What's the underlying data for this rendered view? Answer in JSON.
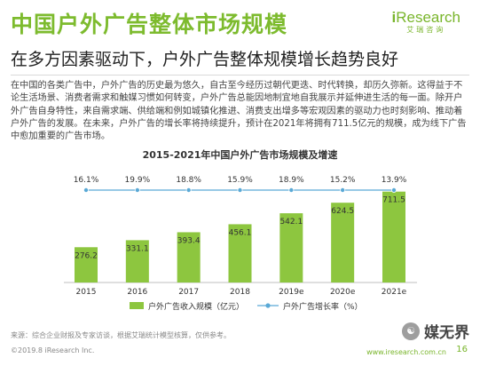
{
  "header": {
    "title": "中国户外广告整体市场规模",
    "subtitle": "在多方因素驱动下，户外广告整体规模增长趋势良好",
    "paragraph": "在中国的各类广告中，户外广告的历史最为悠久，自古至今经历过朝代更迭、时代转换，却历久弥新。这得益于不论生活场景、消费者需求和触媒习惯如何转变，户外广告总能因地制宜地自我展示并延伸进生活的每一面。除开户外广告自身特性，来自需求端、供给端和例如城镇化推进、消费支出增多等宏观因素的驱动力也时刻影响、推动着户外广告的发展。在未来，户外广告的增长率将持续提升，预计在2021年将拥有711.5亿元的规模，成为线下广告中愈加重要的广告市场。"
  },
  "logo": {
    "brand_prefix": "i",
    "brand_main": "Research",
    "brand_sub": "艾瑞咨询"
  },
  "chart_data": {
    "type": "bar",
    "title": "2015-2021年中国户外广告市场规模及增速",
    "categories": [
      "2015",
      "2016",
      "2017",
      "2018",
      "2019e",
      "2020e",
      "2021e"
    ],
    "series": [
      {
        "name": "户外广告收入规模（亿元）",
        "type": "bar",
        "values": [
          276.2,
          331.1,
          393.4,
          456.1,
          542.1,
          624.5,
          711.5
        ],
        "color": "#8dc63f"
      },
      {
        "name": "户外广告增长率（%）",
        "type": "line",
        "values": [
          16.1,
          19.9,
          18.8,
          15.9,
          18.9,
          15.2,
          13.9
        ],
        "color": "#5aa9d6"
      }
    ],
    "value_labels": [
      "276.2",
      "331.1",
      "393.4",
      "456.1",
      "542.1",
      "624.5",
      "711.5"
    ],
    "rate_labels": [
      "16.1%",
      "19.9%",
      "18.8%",
      "15.9%",
      "18.9%",
      "15.2%",
      "13.9%"
    ],
    "ylim": [
      0,
      800
    ],
    "legend_position": "bottom-center",
    "grid": false
  },
  "footer": {
    "source": "来源：综合企业财报及专家访谈，根据艾瑞统计模型核算，仅供参考。",
    "copyright": "©2019.8 iResearch Inc.",
    "url": "www.iresearch.com.cn",
    "page": "16"
  },
  "watermark": {
    "icon_glyph": "☯",
    "text": "媒无界"
  }
}
